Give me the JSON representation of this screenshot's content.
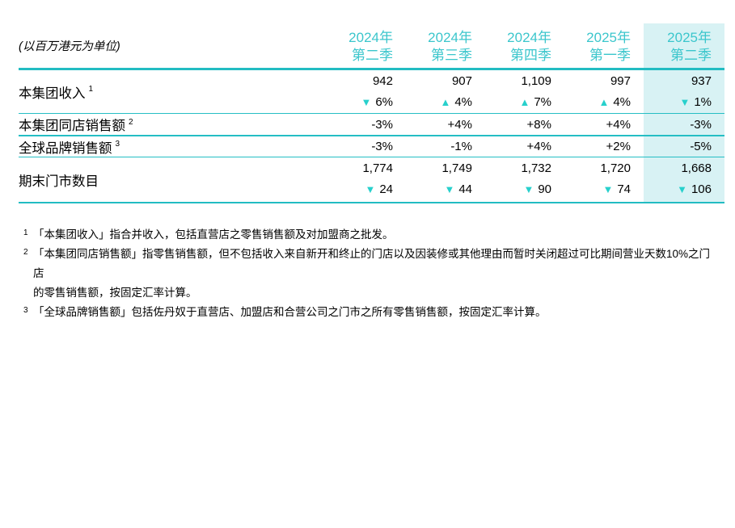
{
  "unit_label": "(以百万港元为单位)",
  "columns": [
    {
      "year": "2024年",
      "quarter": "第二季",
      "highlight": false
    },
    {
      "year": "2024年",
      "quarter": "第三季",
      "highlight": false
    },
    {
      "year": "2024年",
      "quarter": "第四季",
      "highlight": false
    },
    {
      "year": "2025年",
      "quarter": "第一季",
      "highlight": false
    },
    {
      "year": "2025年",
      "quarter": "第二季",
      "highlight": true
    }
  ],
  "rows": [
    {
      "label": "本集团收入",
      "footnote_ref": "1",
      "cells": [
        {
          "value": "942",
          "direction": "down",
          "change": "6%"
        },
        {
          "value": "907",
          "direction": "up",
          "change": "4%"
        },
        {
          "value": "1,109",
          "direction": "up",
          "change": "7%"
        },
        {
          "value": "997",
          "direction": "up",
          "change": "4%"
        },
        {
          "value": "937",
          "direction": "down",
          "change": "1%"
        }
      ]
    },
    {
      "label": "本集团同店销售额",
      "footnote_ref": "2",
      "cells": [
        {
          "value": "-3%"
        },
        {
          "value": "+4%"
        },
        {
          "value": "+8%"
        },
        {
          "value": "+4%"
        },
        {
          "value": "-3%"
        }
      ]
    },
    {
      "label": "全球品牌销售额",
      "footnote_ref": "3",
      "cells": [
        {
          "value": "-3%"
        },
        {
          "value": "-1%"
        },
        {
          "value": "+4%"
        },
        {
          "value": "+2%"
        },
        {
          "value": "-5%"
        }
      ]
    },
    {
      "label": "期末门市数目",
      "footnote_ref": "",
      "cells": [
        {
          "value": "1,774",
          "direction": "down",
          "change": "24"
        },
        {
          "value": "1,749",
          "direction": "down",
          "change": "44"
        },
        {
          "value": "1,732",
          "direction": "down",
          "change": "90"
        },
        {
          "value": "1,720",
          "direction": "down",
          "change": "74"
        },
        {
          "value": "1,668",
          "direction": "down",
          "change": "106"
        }
      ]
    }
  ],
  "footnotes": [
    {
      "marker": "1",
      "text": "「本集团收入」指合并收入，包括直营店之零售销售额及对加盟商之批发。"
    },
    {
      "marker": "2",
      "text": "「本集团同店销售额」指零售销售额，但不包括收入来自新开和终止的门店以及因装修或其他理由而暂时关闭超过可比期间营业天数10%之门店\n的零售销售额，按固定汇率计算。"
    },
    {
      "marker": "3",
      "text": "「全球品牌销售额」包括佐丹奴于直营店、加盟店和合营公司之门市之所有零售销售额，按固定汇率计算。"
    }
  ],
  "colors": {
    "header_teal": "#3bc6cc",
    "rule_teal": "#22bcc2",
    "arrow_teal": "#27d0cc",
    "highlight_bg": "#d8f2f4",
    "text_black": "#000000"
  }
}
